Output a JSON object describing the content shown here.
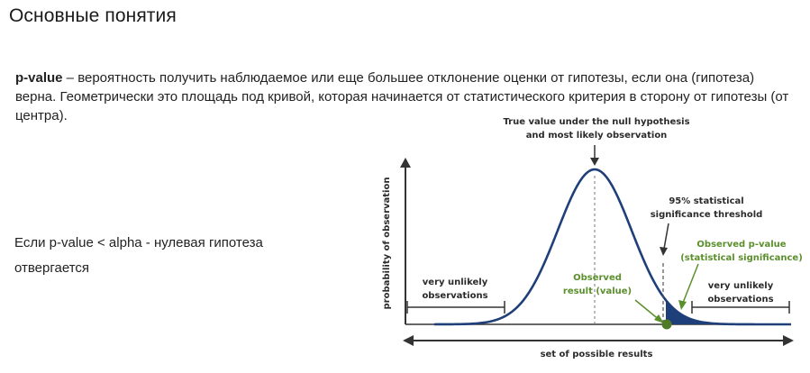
{
  "page": {
    "title": "Основные понятия",
    "definition_term": "p-value",
    "definition_text": " – вероятность получить наблюдаемое или еще большее отклонение оценки от гипотезы, если она (гипотеза) верна. Геометрически это площадь под кривой, которая начинается от статистического критерия в сторону от гипотезы (от центра).",
    "rule_text": "Если p-value < alpha -  нулевая гипотеза отвергается"
  },
  "figure": {
    "y_axis_label": "probability of observation",
    "x_axis_label": "set of possible results",
    "null_label_line1": "True value under the null hypothesis",
    "null_label_line2": "and most likely observation",
    "threshold_line1": "95% statistical",
    "threshold_line2": "significance threshold",
    "observed_pvalue_line1": "Observed p-value",
    "observed_pvalue_line2": "(statistical significance)",
    "observed_result_line1": "Observed",
    "observed_result_line2": "result (value)",
    "left_unlikely_line1": "very unlikely",
    "left_unlikely_line2": "observations",
    "right_unlikely_line1": "very unlikely",
    "right_unlikely_line2": "observations",
    "colors": {
      "curve": "#1f3f7a",
      "tail_fill": "#1f3f7a",
      "green": "#5a8f2c",
      "axis": "#333333"
    }
  }
}
